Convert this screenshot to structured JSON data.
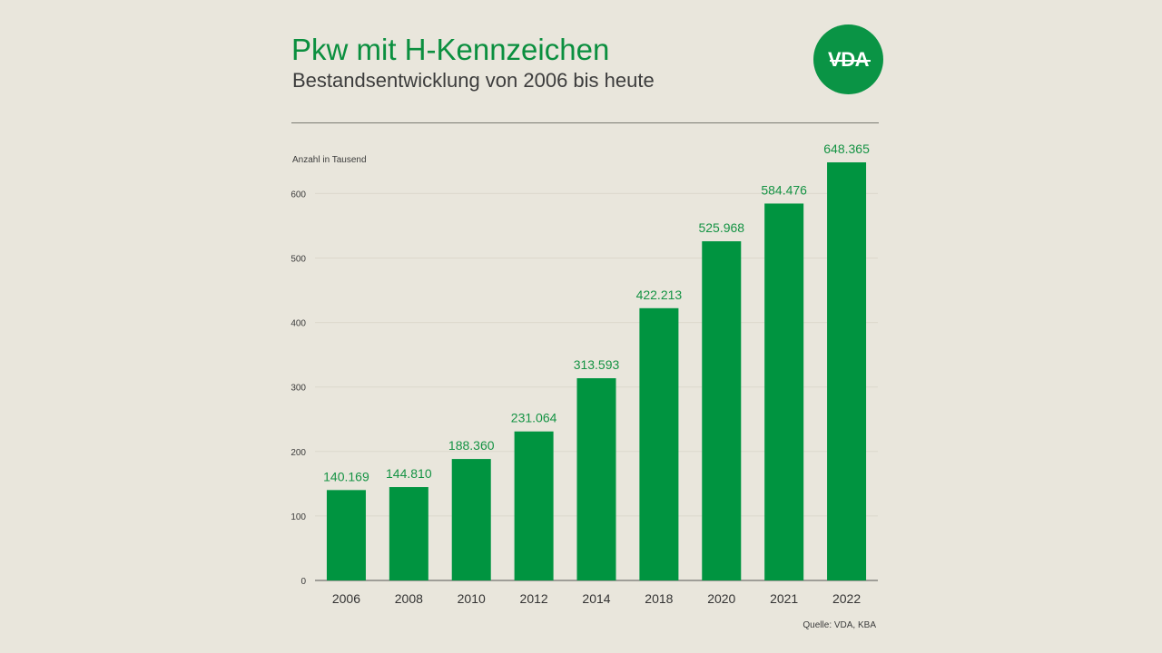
{
  "header": {
    "title": "Pkw mit H-Kennzeichen",
    "subtitle": "Bestandsentwicklung von 2006 bis heute",
    "logo_text": "VDA"
  },
  "footer": {
    "source": "Quelle: VDA, KBA"
  },
  "colors": {
    "brand": "#0b8f3f",
    "bar": "#009440",
    "background": "#e9e6dc"
  },
  "chart_data": {
    "type": "bar",
    "title": "Pkw mit H-Kennzeichen",
    "subtitle": "Bestandsentwicklung von 2006 bis heute",
    "ylabel": "Anzahl in Tausend",
    "xlabel": "",
    "categories": [
      "2006",
      "2008",
      "2010",
      "2012",
      "2014",
      "2018",
      "2020",
      "2021",
      "2022"
    ],
    "values": [
      140.169,
      144.81,
      188.36,
      231.064,
      313.593,
      422.213,
      525.968,
      584.476,
      648.365
    ],
    "value_labels": [
      "140.169",
      "144.810",
      "188.360",
      "231.064",
      "313.593",
      "422.213",
      "525.968",
      "584.476",
      "648.365"
    ],
    "yticks": [
      0,
      100,
      200,
      300,
      400,
      500,
      600
    ],
    "ylim": [
      0,
      650
    ],
    "grid": true,
    "source": "Quelle: VDA, KBA"
  }
}
